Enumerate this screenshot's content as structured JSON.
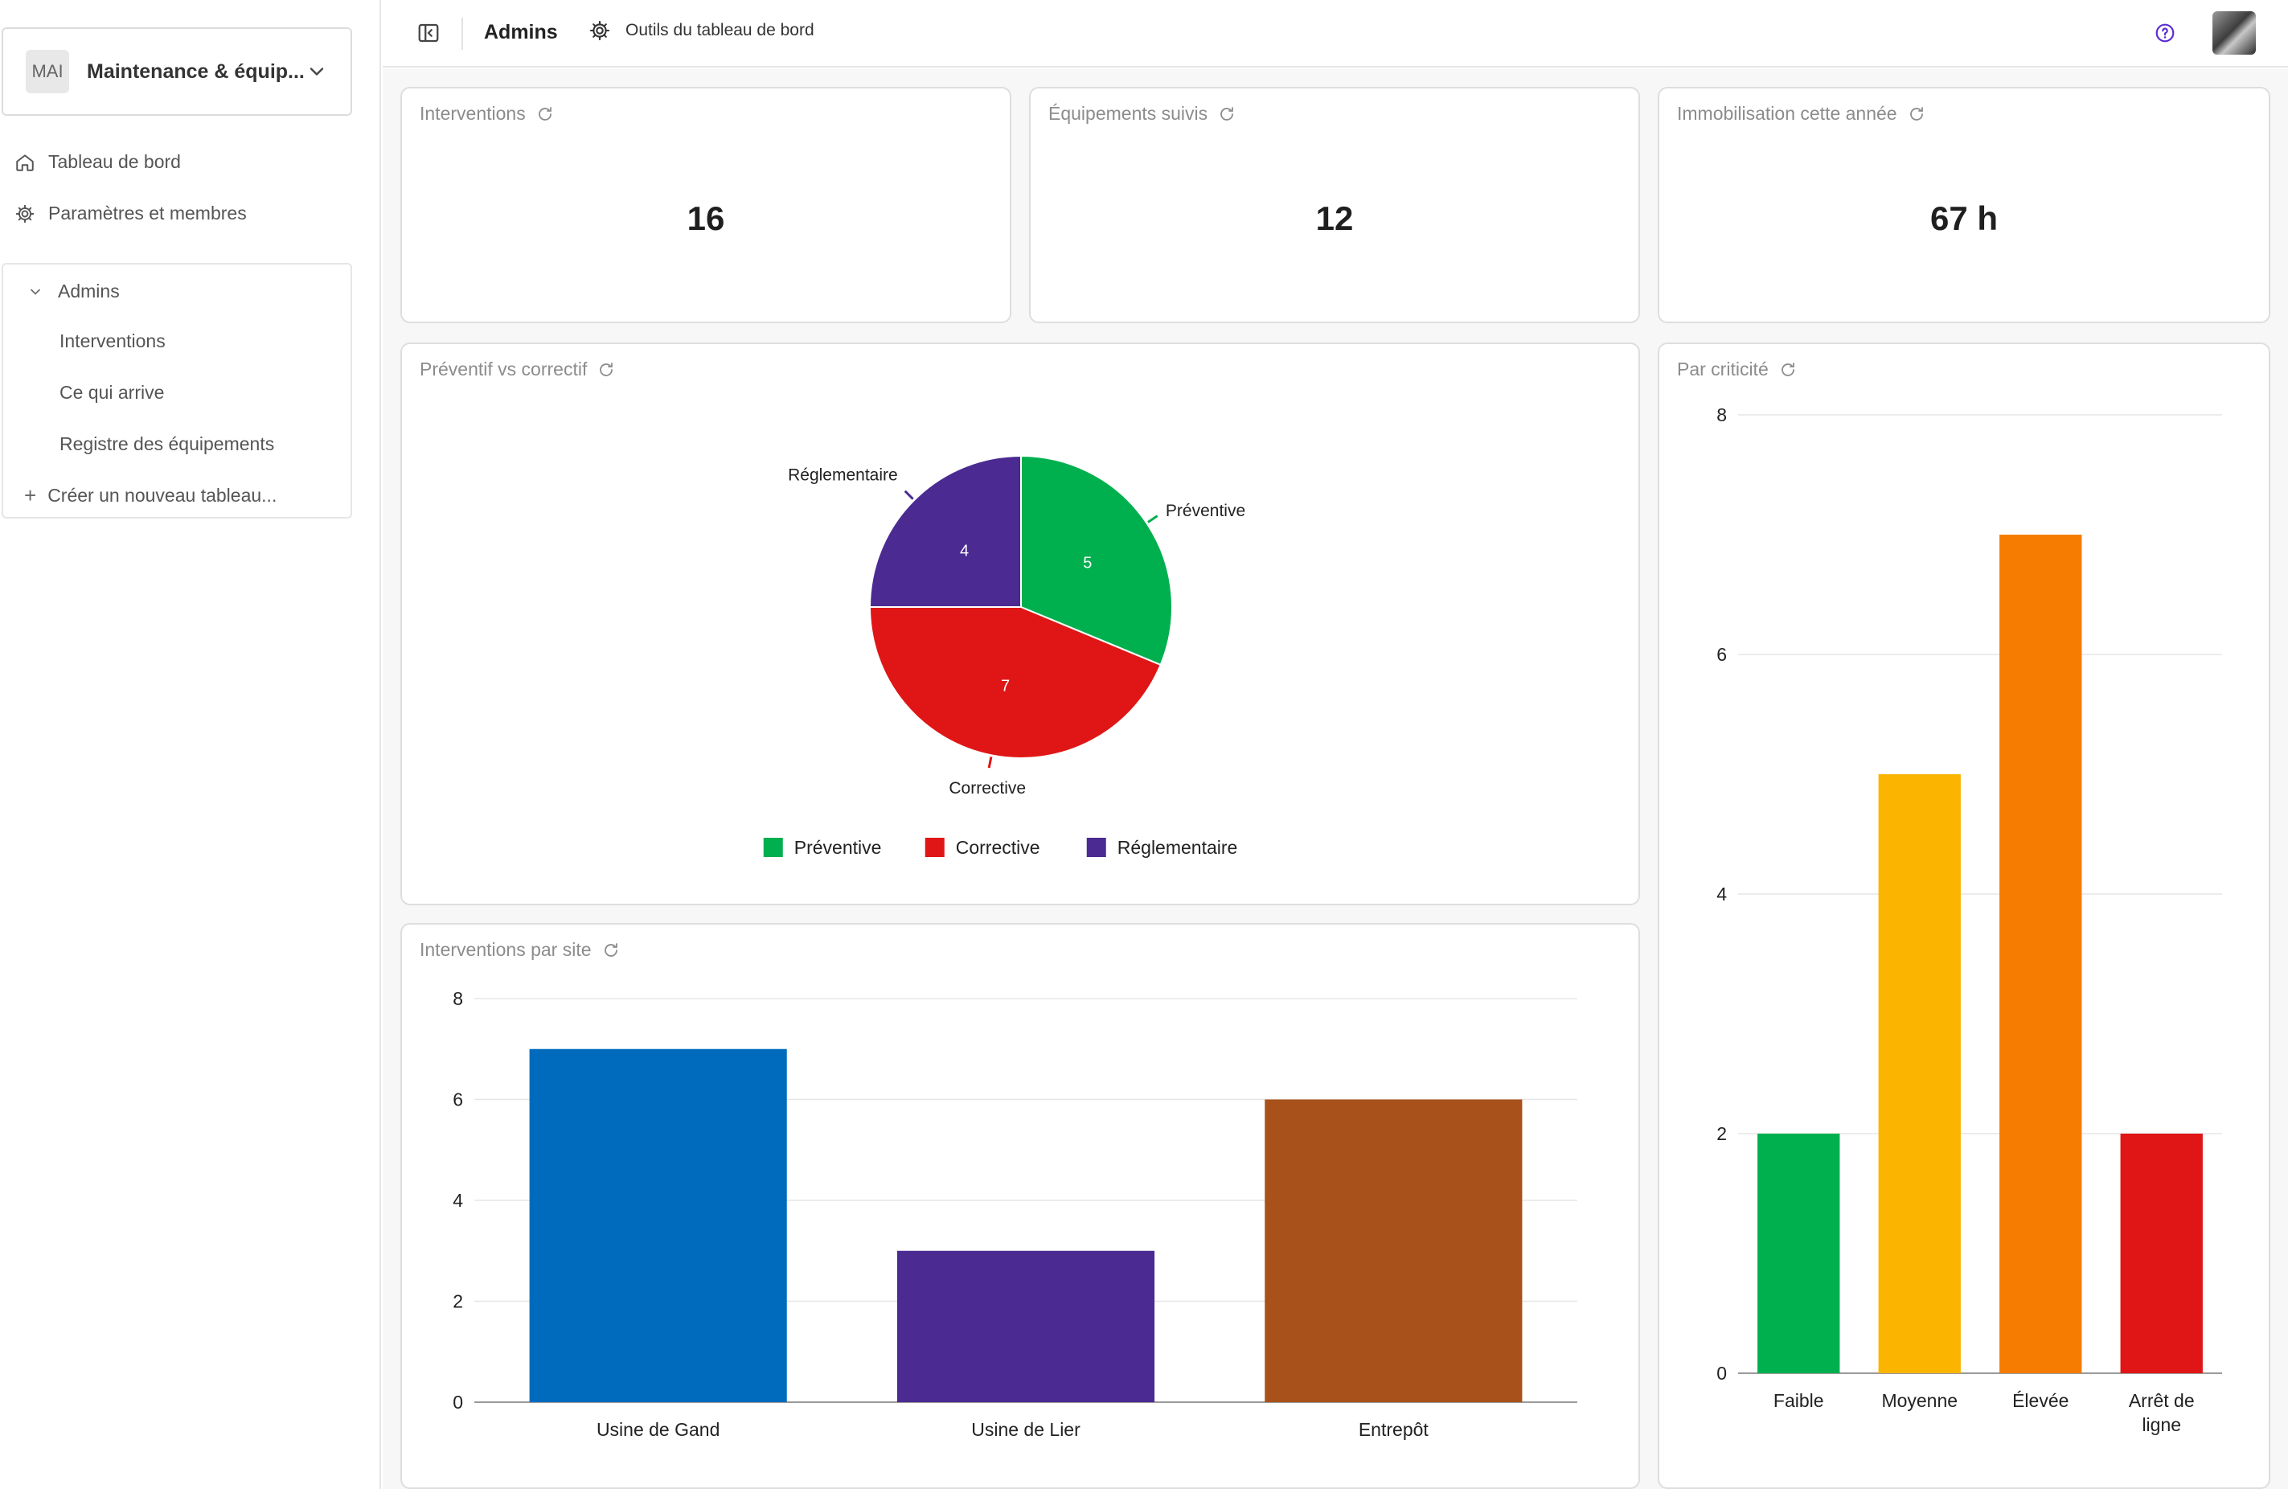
{
  "sidebar": {
    "workspace_badge": "MAI",
    "workspace_name": "Maintenance & équip...",
    "nav": [
      {
        "label": "Tableau de bord",
        "icon": "home-icon"
      },
      {
        "label": "Paramètres et membres",
        "icon": "gear-icon"
      }
    ],
    "group": {
      "label": "Admins",
      "items": [
        "Interventions",
        "Ce qui arrive",
        "Registre des équipements"
      ]
    },
    "create_label": "Créer un nouveau tableau..."
  },
  "topbar": {
    "title": "Admins",
    "tools_label": "Outils du tableau de bord",
    "help_icon": "help-circle-icon",
    "avatar_icon": "user-avatar"
  },
  "kpis": [
    {
      "label": "Interventions",
      "value": "16"
    },
    {
      "label": "Équipements suivis",
      "value": "12"
    },
    {
      "label": "Immobilisation cette année",
      "value": "67 h"
    }
  ],
  "cards": {
    "pie_title": "Préventif vs correctif",
    "site_title": "Interventions par site",
    "crit_title": "Par criticité"
  },
  "chart_data": [
    {
      "type": "pie",
      "title": "Préventif vs correctif",
      "slices": [
        {
          "label": "Préventive",
          "value": 5,
          "color": "#00b04f"
        },
        {
          "label": "Corrective",
          "value": 7,
          "color": "#e01616"
        },
        {
          "label": "Réglementaire",
          "value": 4,
          "color": "#4b2a91"
        }
      ],
      "legend": "bottom"
    },
    {
      "type": "bar",
      "title": "Interventions par site",
      "categories": [
        "Usine de Gand",
        "Usine de Lier",
        "Entrepôt"
      ],
      "values": [
        7,
        3,
        6
      ],
      "colors": [
        "#006bbd",
        "#4b2a91",
        "#a8511a"
      ],
      "ylim": [
        0,
        8
      ],
      "yticks": [
        0,
        2,
        4,
        6,
        8
      ],
      "grid": true
    },
    {
      "type": "bar",
      "title": "Par criticité",
      "categories": [
        "Faible",
        "Moyenne",
        "Élevée",
        "Arrêt de ligne"
      ],
      "values": [
        2,
        5,
        7,
        2
      ],
      "colors": [
        "#00b04f",
        "#fbb400",
        "#f57c00",
        "#e01616"
      ],
      "ylim": [
        0,
        8
      ],
      "yticks": [
        0,
        2,
        4,
        6,
        8
      ],
      "grid": true
    }
  ]
}
